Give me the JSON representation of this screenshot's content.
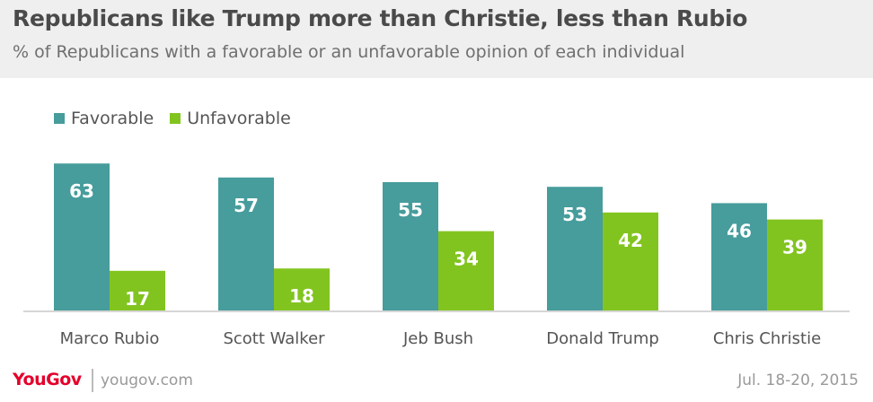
{
  "header": {
    "title": "Republicans like Trump more than Christie, less than Rubio",
    "subtitle": "% of Republicans with a favorable or an unfavorable opinion of each individual"
  },
  "colors": {
    "favorable": "#479c9c",
    "unfavorable": "#82c41f",
    "header_bg": "#efefef",
    "brand": "#e4002b"
  },
  "chart_data": {
    "type": "bar",
    "title": "Republicans like Trump more than Christie, less than Rubio",
    "subtitle": "% of Republicans with a favorable or an unfavorable opinion of each individual",
    "categories": [
      "Marco Rubio",
      "Scott Walker",
      "Jeb Bush",
      "Donald Trump",
      "Chris Christie"
    ],
    "series": [
      {
        "name": "Favorable",
        "color": "#479c9c",
        "values": [
          63,
          57,
          55,
          53,
          46
        ]
      },
      {
        "name": "Unfavorable",
        "color": "#82c41f",
        "values": [
          17,
          18,
          34,
          42,
          39
        ]
      }
    ],
    "xlabel": "",
    "ylabel": "",
    "ylim": [
      0,
      70
    ],
    "grid": false,
    "legend_position": "top-left",
    "data_labels": true
  },
  "footer": {
    "logo": "YouGov",
    "site": "yougov.com",
    "date": "Jul. 18-20, 2015"
  }
}
